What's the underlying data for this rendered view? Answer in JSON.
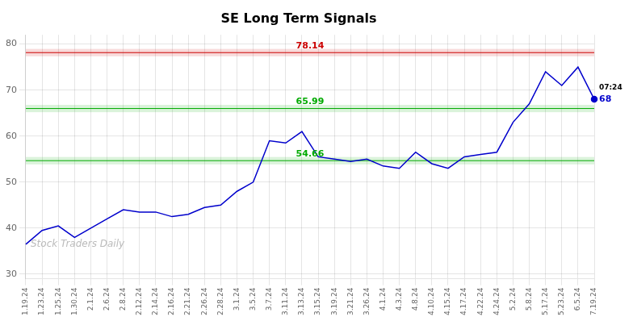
{
  "chart_data": {
    "type": "line",
    "title": "SE Long Term Signals",
    "categories": [
      "1.19.24",
      "1.23.24",
      "1.25.24",
      "1.30.24",
      "2.1.24",
      "2.6.24",
      "2.8.24",
      "2.12.24",
      "2.14.24",
      "2.16.24",
      "2.21.24",
      "2.26.24",
      "2.28.24",
      "3.1.24",
      "3.5.24",
      "3.7.24",
      "3.11.24",
      "3.13.24",
      "3.15.24",
      "3.19.24",
      "3.21.24",
      "3.26.24",
      "4.1.24",
      "4.3.24",
      "4.8.24",
      "4.10.24",
      "4.15.24",
      "4.17.24",
      "4.22.24",
      "4.24.24",
      "5.2.24",
      "5.8.24",
      "5.17.24",
      "5.23.24",
      "6.5.24",
      "7.19.24"
    ],
    "values": [
      36.5,
      39.5,
      40.5,
      38.0,
      40.0,
      42.0,
      44.0,
      43.5,
      43.5,
      42.5,
      43.0,
      44.5,
      45.0,
      48.0,
      50.0,
      59.0,
      58.5,
      61.0,
      55.5,
      55.0,
      54.5,
      55.0,
      53.5,
      53.0,
      56.5,
      54.0,
      53.0,
      55.5,
      56.0,
      56.5,
      63.0,
      67.0,
      74.0,
      71.0,
      75.0,
      68.0
    ],
    "color": "#0000cc",
    "ylim": [
      29,
      82
    ],
    "yticks": [
      30,
      40,
      50,
      60,
      70,
      80
    ],
    "grid": true,
    "hlines": [
      {
        "value": 78.14,
        "label": "78.14",
        "color": "#cc0000"
      },
      {
        "value": 65.99,
        "label": "65.99",
        "color": "#00aa00"
      },
      {
        "value": 54.66,
        "label": "54.66",
        "color": "#00aa00"
      }
    ],
    "end_label": "07:24",
    "end_value_label": "68",
    "watermark": {
      "text": "Stock Traders Daily",
      "color": "#bbbbbb"
    }
  }
}
